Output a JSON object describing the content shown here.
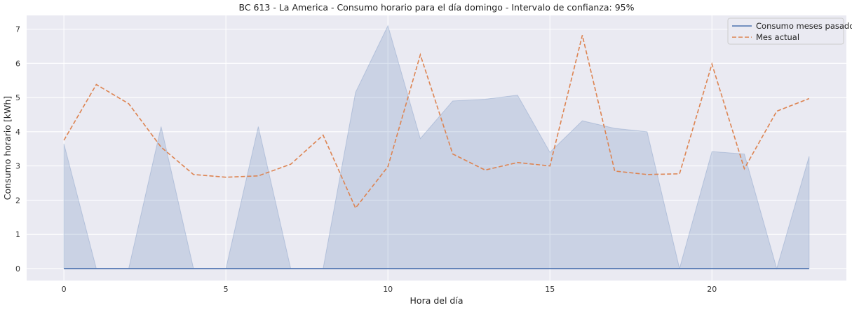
{
  "chart_data": {
    "type": "line",
    "title": "BC 613 - La America - Consumo horario para el día domingo - Intervalo de confianza: 95%",
    "xlabel": "Hora del día",
    "ylabel": "Consumo horario [kWh]",
    "xlim": [
      -1.15,
      24.15
    ],
    "ylim": [
      -0.35,
      7.4
    ],
    "xticks": [
      0,
      5,
      10,
      15,
      20
    ],
    "yticks": [
      0,
      1,
      2,
      3,
      4,
      5,
      6,
      7
    ],
    "grid": true,
    "legend_position": "top-right",
    "x": [
      0,
      1,
      2,
      3,
      4,
      5,
      6,
      7,
      8,
      9,
      10,
      11,
      12,
      13,
      14,
      15,
      16,
      17,
      18,
      19,
      20,
      21,
      22,
      23
    ],
    "series": [
      {
        "name": "Consumo meses pasados",
        "style": "solid",
        "color": "#4c72b0",
        "values": [
          0,
          0,
          0,
          0,
          0,
          0,
          0,
          0,
          0,
          0,
          0,
          0,
          0,
          0,
          0,
          0,
          0,
          0,
          0,
          0,
          0,
          0,
          0,
          0
        ],
        "ci_upper": [
          3.65,
          0,
          0,
          4.15,
          0,
          0,
          4.15,
          0,
          0,
          5.15,
          7.1,
          3.8,
          4.9,
          4.95,
          5.07,
          3.4,
          4.32,
          4.1,
          4.0,
          0,
          3.42,
          3.35,
          0,
          3.28
        ],
        "ci_lower": [
          0,
          0,
          0,
          0,
          0,
          0,
          0,
          0,
          0,
          0,
          0,
          0,
          0,
          0,
          0,
          0,
          0,
          0,
          0,
          0,
          0,
          0,
          0,
          0
        ],
        "ci_color": "#4c72b0"
      },
      {
        "name": "Mes actual",
        "style": "dashed",
        "color": "#dd8452",
        "values": [
          3.75,
          5.38,
          4.82,
          3.55,
          2.75,
          2.67,
          2.71,
          3.05,
          3.9,
          1.77,
          2.98,
          6.25,
          3.35,
          2.88,
          3.1,
          3.0,
          6.82,
          2.85,
          2.75,
          2.77,
          5.98,
          2.92,
          4.6,
          4.97
        ]
      }
    ]
  }
}
